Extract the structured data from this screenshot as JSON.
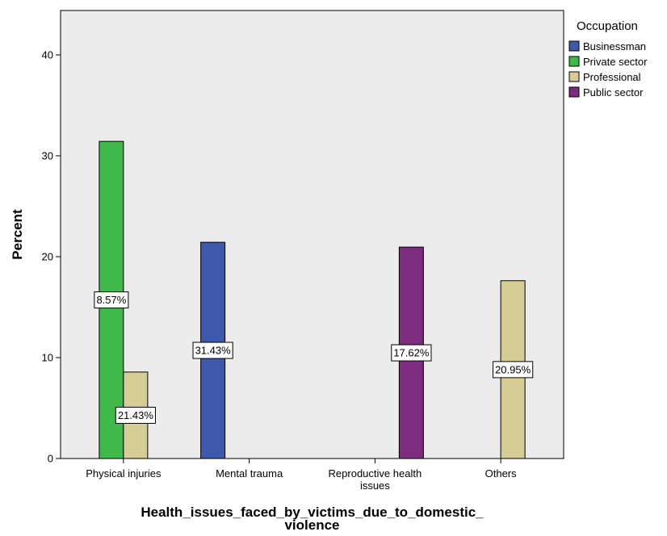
{
  "chart_data": {
    "type": "bar",
    "categories": [
      "Physical injuries",
      "Mental trauma",
      "Reproductive health issues",
      "Others"
    ],
    "category_display": [
      [
        "Physical injuries"
      ],
      [
        "Mental trauma"
      ],
      [
        "Reproductive health",
        "issues"
      ],
      [
        "Others"
      ]
    ],
    "series": [
      {
        "name": "Businessman",
        "color": "#3e58ac",
        "values": [
          null,
          21.43,
          null,
          null
        ]
      },
      {
        "name": "Private sector",
        "color": "#3fb94a",
        "values": [
          31.43,
          null,
          null,
          null
        ]
      },
      {
        "name": "Professional",
        "color": "#d5cc96",
        "values": [
          8.57,
          null,
          null,
          17.62
        ]
      },
      {
        "name": "Public sector",
        "color": "#7d2b7e",
        "values": [
          null,
          null,
          20.95,
          null
        ]
      }
    ],
    "data_labels": [
      "31.43%",
      "8.57%",
      "21.43%",
      "20.95%",
      "17.62%"
    ],
    "title": "",
    "xlabel_lines": [
      "Health_issues_faced_by_victims_due_to_domestic_",
      "violence"
    ],
    "ylabel": "Percent",
    "ylim": [
      0,
      44.4
    ],
    "yticks": [
      0,
      10,
      20,
      30,
      40
    ],
    "legend_title": "Occupation",
    "legend_position": "top-right, outside plot",
    "grid": false,
    "plot_background": "#ececec"
  }
}
